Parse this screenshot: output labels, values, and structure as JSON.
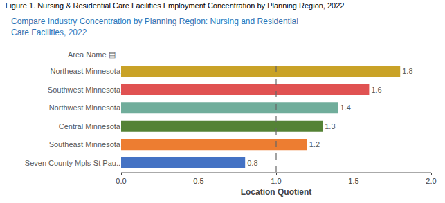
{
  "chart_data": {
    "type": "bar",
    "orientation": "horizontal",
    "title": "Figure 1. Nursing & Residential Care Facilities Employment Concentration by Planning Region, 2022",
    "subtitle": "Compare Industry Concentration by Planning Region: Nursing and Residential\nCare Facilities, 2022",
    "xlabel": "Location Quotient",
    "ylabel": "Area Name ▤",
    "categories": [
      "Seven County Mpls-St Pau..",
      "Southeast Minnesota",
      "Central Minnesota",
      "Northwest Minnesota",
      "Southwest Minnesota",
      "Northeast Minnesota"
    ],
    "values": [
      0.8,
      1.2,
      1.3,
      1.4,
      1.6,
      1.8
    ],
    "colors": [
      "#4472C4",
      "#ED7D31",
      "#548235",
      "#70AD9B",
      "#E05252",
      "#C9A227"
    ],
    "xlim": [
      0.0,
      2.0
    ],
    "xticks": [
      {
        "value": 0.0,
        "label": "0.0"
      },
      {
        "value": 0.5,
        "label": "0.5"
      },
      {
        "value": 1.0,
        "label": "1.0"
      },
      {
        "value": 1.5,
        "label": "1.5"
      },
      {
        "value": 2.0,
        "label": "2.0"
      }
    ],
    "reference_line": 1.0,
    "data_labels": true,
    "grid": false
  }
}
